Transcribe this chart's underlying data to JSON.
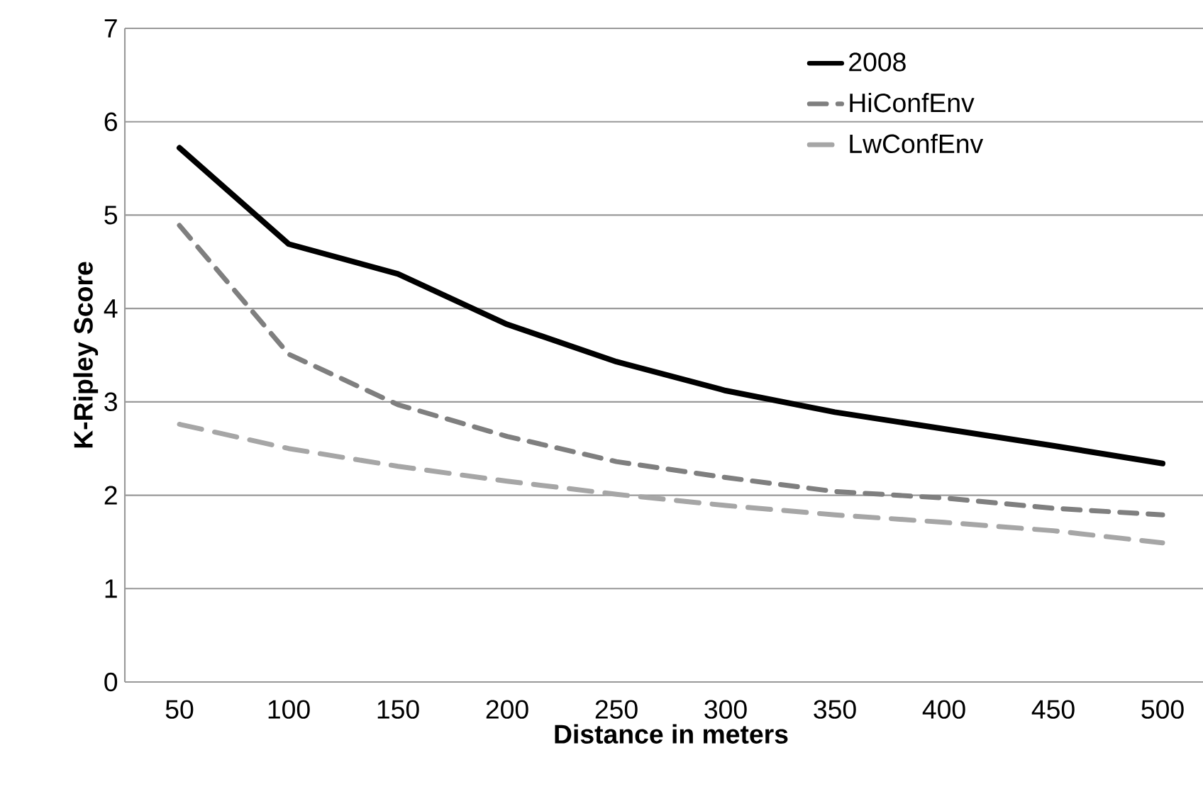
{
  "chart_data": {
    "type": "line",
    "xlabel": "Distance in meters",
    "ylabel": "K-Ripley Score",
    "categories": [
      "50",
      "100",
      "150",
      "200",
      "250",
      "300",
      "350",
      "400",
      "450",
      "500"
    ],
    "series": [
      {
        "name": "2008",
        "color": "#000000",
        "line_style": "solid",
        "values": [
          5.72,
          4.69,
          4.37,
          3.83,
          3.43,
          3.12,
          2.89,
          2.71,
          2.53,
          2.34
        ]
      },
      {
        "name": "HiConfEnv",
        "color": "#7f7f7f",
        "line_style": "dashed",
        "values": [
          4.89,
          3.51,
          2.97,
          2.63,
          2.36,
          2.19,
          2.04,
          1.97,
          1.86,
          1.79
        ]
      },
      {
        "name": "LwConfEnv",
        "color": "#a6a6a6",
        "line_style": "dashed",
        "values": [
          2.76,
          2.5,
          2.31,
          2.15,
          2.01,
          1.89,
          1.79,
          1.71,
          1.62,
          1.49
        ]
      }
    ],
    "ylim": [
      0,
      7
    ],
    "yticks": [
      0,
      1,
      2,
      3,
      4,
      5,
      6,
      7
    ],
    "grid": "y",
    "legend": "top right",
    "marker": "none"
  }
}
